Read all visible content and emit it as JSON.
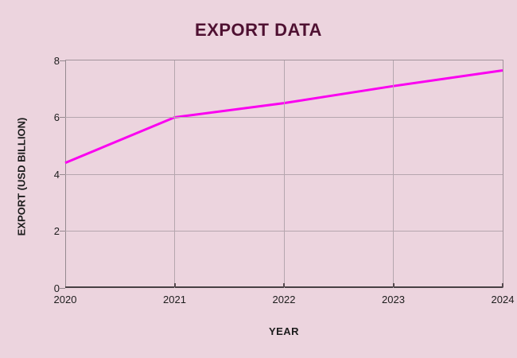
{
  "page": {
    "background": "#ecd4de"
  },
  "chart_data": {
    "type": "line",
    "title": "EXPORT DATA",
    "xlabel": "YEAR",
    "ylabel": "EXPORT (USD BILLION)",
    "categories": [
      "2020",
      "2021",
      "2022",
      "2023",
      "2024"
    ],
    "series": [
      {
        "name": "Export",
        "values": [
          4.4,
          6.0,
          6.5,
          7.1,
          7.65
        ]
      }
    ],
    "ylim": [
      0,
      8
    ],
    "yticks": [
      0,
      2,
      4,
      6,
      8
    ],
    "grid": true,
    "legend": false,
    "line_width": 3,
    "colors": {
      "background": "#ecd4de",
      "line": "#fa00f0",
      "title": "#4f1132",
      "tick_text": "#1c1c1c",
      "grid": "#b5a6ae",
      "plot_border": "#a2939c",
      "y_axis_line": "#95898f",
      "x_axis_line": "#474043",
      "tick_mark": "#55494e"
    }
  }
}
